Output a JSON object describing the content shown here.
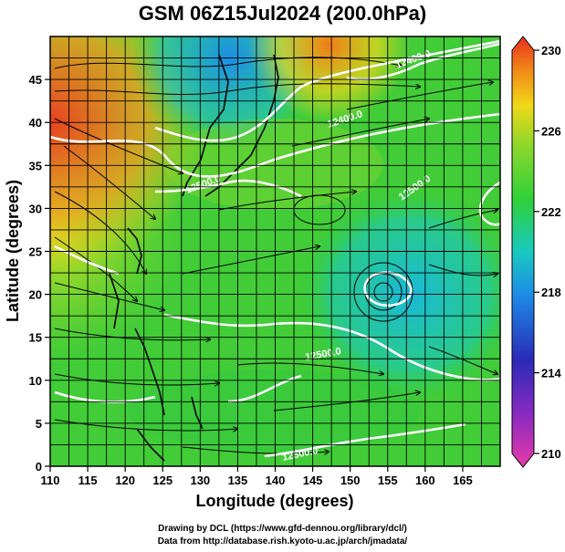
{
  "header": {
    "title": "GSM 06Z15Jul2024 (200.0hPa)"
  },
  "axes": {
    "xlabel": "Longitude (degrees)",
    "ylabel": "Latitude  (degrees)",
    "xticks": [
      "110",
      "115",
      "120",
      "125",
      "130",
      "135",
      "140",
      "145",
      "150",
      "155",
      "160",
      "165"
    ],
    "yticks": [
      "0",
      "5",
      "10",
      "15",
      "20",
      "25",
      "30",
      "35",
      "40",
      "45"
    ],
    "xlim": [
      110,
      170
    ],
    "ylim": [
      0,
      50
    ]
  },
  "colorbar": {
    "ticks": [
      "210",
      "214",
      "218",
      "222",
      "226",
      "230"
    ],
    "colors": [
      "#e83aa8",
      "#3a2bb0",
      "#1ca7e6",
      "#35c93c",
      "#f0d818",
      "#e84020"
    ]
  },
  "contours": {
    "labels": [
      "12400.0",
      "12400.0",
      "12500.0",
      "12500.0",
      "12500.0",
      "12500.0",
      "12400.0",
      "12500.0",
      "12500.0",
      "12300.0"
    ]
  },
  "credits": {
    "line1": "Drawing by DCL (https://www.gfd-dennou.org/library/dcl/)",
    "line2": "Data from http://database.rish.kyoto-u.ac.jp/arch/jmadata/"
  }
}
